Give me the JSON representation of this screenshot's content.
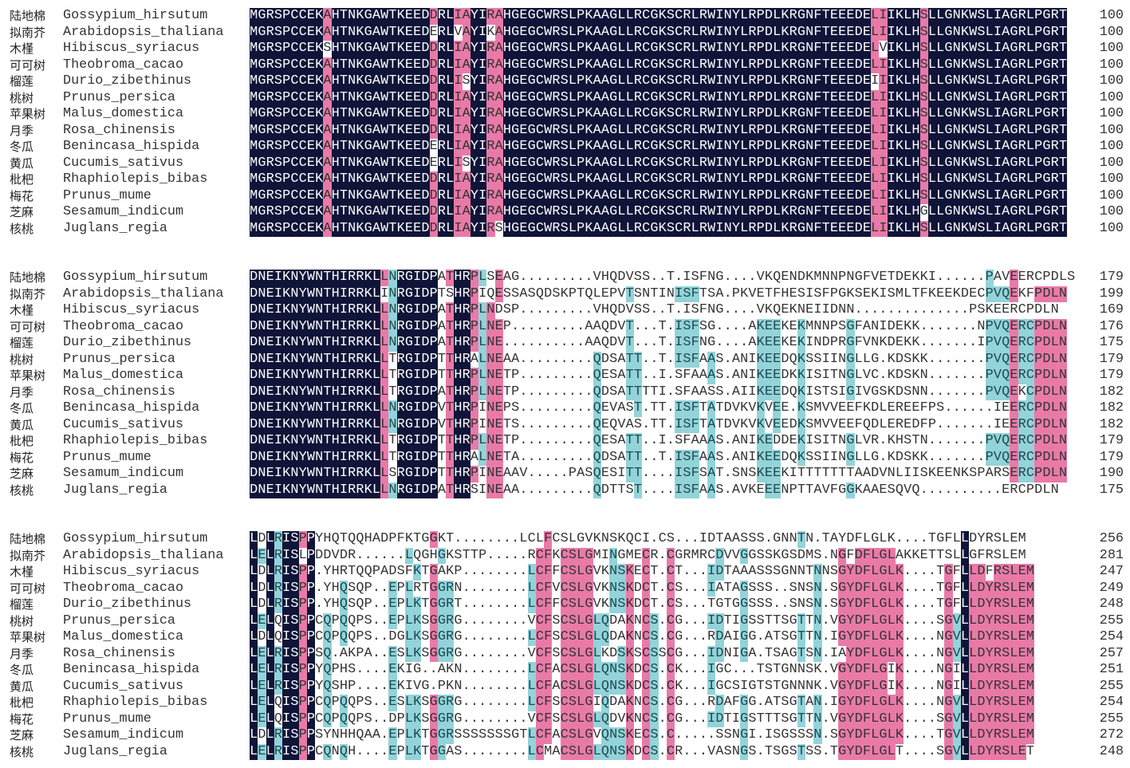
{
  "colors": {
    "identical": "#0f1438",
    "high": "#e97aa8",
    "medium": "#93d3da",
    "text": "#333333"
  },
  "species": [
    {
      "cn": "陆地棉",
      "latin": "Gossypium_hirsutum"
    },
    {
      "cn": "拟南芥",
      "latin": "Arabidopsis_thaliana"
    },
    {
      "cn": "木槿",
      "latin": "Hibiscus_syriacus"
    },
    {
      "cn": "可可树",
      "latin": "Theobroma_cacao"
    },
    {
      "cn": "榴莲",
      "latin": "Durio_zibethinus"
    },
    {
      "cn": "桃树",
      "latin": "Prunus_persica"
    },
    {
      "cn": "苹果树",
      "latin": "Malus_domestica"
    },
    {
      "cn": "月季",
      "latin": "Rosa_chinensis"
    },
    {
      "cn": "冬瓜",
      "latin": "Benincasa_hispida"
    },
    {
      "cn": "黄瓜",
      "latin": "Cucumis_sativus"
    },
    {
      "cn": "枇杷",
      "latin": "Rhaphiolepis_bibas"
    },
    {
      "cn": "梅花",
      "latin": "Prunus_mume"
    },
    {
      "cn": "芝麻",
      "latin": "Sesamum_indicum"
    },
    {
      "cn": "核桃",
      "latin": "Juglans_regia"
    }
  ],
  "blocks": [
    {
      "rows": [
        {
          "seq": "MGRSPCCEKAHTNKGAWTKEEDDRLIAYIRAHGEGCWRSLPKAAGLLRCGKSCRLRWINYLRPDLKRGNFTEEEDELIIKLHSLLGNKWSLIAGRLPGRT",
          "end": "100"
        },
        {
          "seq": "MGRSPCCEKAHTNKGAWTKEEDERLVAYIKAHGEGCWRSLPKAAGLLRCGKSCRLRWINYLRPDLKRGNFTEEEDELIIKLHSLLGNKWSLIAGRLPGRT",
          "end": "100"
        },
        {
          "seq": "MGRSPCCEKSHTNKGAWTKEEDDRLIAYIRAHGEGCWRSLPKAAGLLRCGKSCRLRWINYLRPDLKRGNFTEEEDELVIKLHSLLGNKWSLIAGRLPGRT",
          "end": "100"
        },
        {
          "seq": "MGRSPCCEKAHTNKGAWTKEEDDRLIAYIRAHGEGCWRSLPKAAGLLRCGKSCRLRWINYLRPDLKRGNFTEEEDELIIKLHSLLGNKWSLIAGRLPGRT",
          "end": "100"
        },
        {
          "seq": "MGRSPCCEKAHTNKGAWTKEEDDRLISYIRAHGEGCWRSLPKAAGLLRCGKSCRLRWINYLRPDLKRGNFTEEEDEIIIKLHSLLGNKWSLIAGRLPGRT",
          "end": "100"
        },
        {
          "seq": "MGRSPCCEKAHTNKGAWTKEEDDRLIAYIRAHGEGCWRSLPKAAGLLRCGKSCRLRWINYLRPDLKRGNFTEEEDELIIKLHSLLGNKWSLIAGRLPGRT",
          "end": "100"
        },
        {
          "seq": "MGRSPCCEKAHTNKGAWTKEEDDRLIAYIRAHGEGCWRSLPKAAGLLRCGKSCRLRWINYLRPDLKRGNFTEEEDELIIKLHSLLGNKWSLIAGRLPGRT",
          "end": "100"
        },
        {
          "seq": "MGRSPCCEKAHTNKGAWTKEEDDRLIAYIRAHGEGCWRSLPKAAGLLRCGKSCRLRWINYLRPDLKRGNFTEEEDELIIKLHSLLGNKWSLIAGRLPGRT",
          "end": "100"
        },
        {
          "seq": "MGRSPCCEKAHTNKGAWTKEEDERLIAYIRAHGEGCWRSLPKAAGLLRCGKSCRLRWINYLRPDLKRGNFTEEEDELIIKLHSLLGNKWSLIAGRLPGRT",
          "end": "100"
        },
        {
          "seq": "MGRSPCCEKAHTNKGAWTKEEDERLISYIRAHGEGCWRSLPKAAGLLRCGKSCRLRWINYLRPDLKRGNFTEEEDELIIKLHSLLGNKWSLIAGRLPGRT",
          "end": "100"
        },
        {
          "seq": "MGRSPCCEKAHTNKGAWTKEEDDRLIAYIRAHGEGCWRSLPKAAGLLRCGKSCRLRWINYLRPDLKRGNFTEEEDELIIKLHSLLGNKWSLIAGRLPGRT",
          "end": "100"
        },
        {
          "seq": "MGRSPCCEKAHTNKGAWTKEEDDRLIAYIRAHGEGCWRSLPKAAGLLRCGKSCRLRWINYLRPDLKRGNFTEEEDELIIKLHSLLGNKWSLIAGRLPGRT",
          "end": "100"
        },
        {
          "seq": "MGRSPCCEKAHTNKGAWTKEEDDRLIAYIRAHGEGCWRSLPKAAGLLRCGKSCRLRWINYLRPDLKRGNFTEEEDELIIKLHGLLGNKWSLIAGRLPGRT",
          "end": "100"
        },
        {
          "seq": "MGRSPCCEKAHTNKGAWTKEEDDRLIAYIRSHGEGCWRSLPKAAGLLRCGKSCRLRWINYLRPDLKRGNFTEEEDELIIKLHSLLGNKWSLIAGRLPGRT",
          "end": "100"
        }
      ]
    },
    {
      "rows": [
        {
          "seq": "DNEIKNYWNTHIRRKLLNRGIDPATHRPLSEAG.........VHQDVSS..T.ISFNG....VKQENDKMNNPNGFVETDEKKI......PAVEERCPDLS",
          "end": "179"
        },
        {
          "seq": "DNEIKNYWNTHIRRKLINRGIDPTSHRPIQESSASQDSKPTQLEPVTSNTINISFTSA.PKVETFHESISFPGKSEKISMLTFKEEKDECPVQEKFPDLN",
          "end": "199"
        },
        {
          "seq": "DNEIKNYWNTHIRRKLLNRGIDPATHRPLNDSP.........VHQDVSS..T.ISFNG....VKQEKNEIIDNN..............PSKEERCPDLN",
          "end": "169"
        },
        {
          "seq": "DNEIKNYWNTHIRRKLLNRGIDPATHRPLNEP.........AAQDVT...T.ISFSG....AKEEKEKMNNPSGFANIDEKK.......NPVQERCPDLN",
          "end": "176"
        },
        {
          "seq": "DNEIKNYWNTHIRRKLLNRGIDPATHRPLNE..........AAQDVT...T.ISFNG....AKEEKEKINDPRGFVNKDEKK.......IPVQERCPDLN",
          "end": "175"
        },
        {
          "seq": "DNEIKNYWNTHIRRKLLTRGIDPTTHRALNEAA.........QDSATT..T.ISFAAS.ANIKEEDQKSSIINGLLG.KDSKK.......PVQERCPDLN",
          "end": "179"
        },
        {
          "seq": "DNEIKNYWNTHIRRKLLTRGIDPTTHRPLNETP.........QESATT..I.SFAAAS.ANIKEEDKKISITNGLVC.KDSKN.......PVQERCPDLN",
          "end": "179"
        },
        {
          "seq": "DNEIKNYWNTHIRRKLLTRGIDPATHRPLNETP.........QDSATTTTI.SFAASS.AIIKEEDQKISTSIGIVGSKDSNN.......PVQEKCPDLN",
          "end": "182"
        },
        {
          "seq": "DNEIKNYWNTHIRRKLLNRGIDPVTHRPINEPS.........QEVAST.TT.ISFTATDVKVKVEE.KSMVVEEFKDLEREEFPS......IEERCPDLN",
          "end": "182"
        },
        {
          "seq": "DNEIKNYWNTHIRRKLLNRGIDPVTHRPINETS.........QEQVAS.TT.ISFTATDVKVKVEEDKSMVVEEFQDLEREDFP.......IEERCPDLN",
          "end": "182"
        },
        {
          "seq": "DNEIKNYWNTHIRRKLLTRGIDPTTHRPLNETP.........QESATT..I.SFAAAS.ANIKEDDEKISITNGLVR.KHSTN.......PVQERCPDLN",
          "end": "179"
        },
        {
          "seq": "DNEIKNYWNTHIRRKLLTRGIDPTTHRALNETA.........QDSATT..T.ISFAAS.ANIKEEDQKSSIINGLLG.KDSKK.......PVQERCPDLN",
          "end": "179"
        },
        {
          "seq": "DNEIKNYWNTHIRRKLLSRGIDPTTHRPINEAAV.....PASQESITT....ISFSAT.SNSKEEKITTTTTTTAADVNLIISKEENKSPARSERCPDLN",
          "end": "190"
        },
        {
          "seq": "DNEIKNYWNTHIRRKLLNRGIDPATHRSINEAA.........QDTTST....ISFAAS.AVKEEENPTTAVFGGKAAESQVQ..........ERCPDLN",
          "end": "175"
        }
      ]
    },
    {
      "rows": [
        {
          "seq": "LDLRISPPYHQTQQHADPFKTGGKT........LCLFCSLGVKNSKQCI.CS...IDTAASSS.GNNTN.TAYDFLGLK....TGFLLDYRSLEM",
          "end": "256"
        },
        {
          "seq": "LELRISLPDDVDR......LQGHGKSTTP.....RCFKCSLGMINGMECR.CGRMRCDVVGGSSKGSDMS.NGFDFLGLAKKETTSLLGFRSLEM",
          "end": "281"
        },
        {
          "seq": "LDLRISPP.YHRTQQPADSFKTGAKP........LCFFCSLGVKNSKECT.CT...IDTAAASSSGNNTNNSGYDFLGLK....TGFLLDFRSLEM",
          "end": "247"
        },
        {
          "seq": "LDLRISPP.YHQSQP..EPLRTGGRN........LCFVCSLGVKNSKDCT.CS...IATAGSSS..SNSN.SGYDFLGLK....TGFLLDYRSLEM",
          "end": "249"
        },
        {
          "seq": "LDLRISPP.YHQSQP..EPLKTGGRT........LCFFCSLGVKNSKDCT.CS...TGTGGSSS..SNSN.SGYDFLGLK....TGFLLDYRSLEM",
          "end": "248"
        },
        {
          "seq": "LELQISPPCQPQQPS..EPLKSGGRG........VCFSCSLGLQDAKNCS.CG...IDTIGSSTTSGTTN.VGYDFLGLK....SGVLLDYRSLEM",
          "end": "255"
        },
        {
          "seq": "LDLQISPPCQPQQPS..DGLKSGGRG........LCFSCSLGLQDAKNCS.CG...RDAIGG.ATSGTTN.IGYDFLGLK....NGVLLDYRSLEM",
          "end": "254"
        },
        {
          "seq": "LELRISPPSQ.AKPA..ESLKSGGRG........VCFSCSLGLKDSKSCSSCG...IDNIGA.TSAGTSN.IAYDFLGLK....NGVLLDYRSLEM",
          "end": "257"
        },
        {
          "seq": "LELRISPPYQPHS....EKIG..AKN........LCFACSLGLQNSKDCS.CK...IGC...TSTGNNSK.VGYDFLGIK....NGILLDYRSLEM",
          "end": "251"
        },
        {
          "seq": "LELRISPPYQSHP....EKIVG.PKN........LCFACSLGLQNSKDCS.CK...IGCSIGTSTGNNNK.VGYDFLGIK....NGILLDYRSLEM",
          "end": "255"
        },
        {
          "seq": "LELQISPPCQPQQPS..ESLKSGGRG........LCFSCSLGIQDAKNCS.CG...RDAFGG.ATSGTAN.IGYDFLGLK....NGVLLDYRSLEM",
          "end": "254"
        },
        {
          "seq": "LELQISPPCQPQQPS..DPLKSGGRG........VCFSCSLGLQDVKNCS.CG...IDTIGSTTTSGTTN.VGYDFLGLK....SGVLLDYRSLEM",
          "end": "255"
        },
        {
          "seq": "LDLRISPPSYNHHQAA.EPLKTGGRSSSSSSSGTLCFACSLGVQNSKECS.C.....SSNGI.ISGSSSN.SGYDFLGLK....TGVLLDYRSLEM",
          "end": "272"
        },
        {
          "seq": "LELRISPPCQNQH....EPLKTGGAS........LCMACSLGLQNSKDCS.CR...VASNGS.TSGSTSS.TGYDFLGLT....SGVLLDYRSLET",
          "end": "248"
        }
      ]
    }
  ]
}
